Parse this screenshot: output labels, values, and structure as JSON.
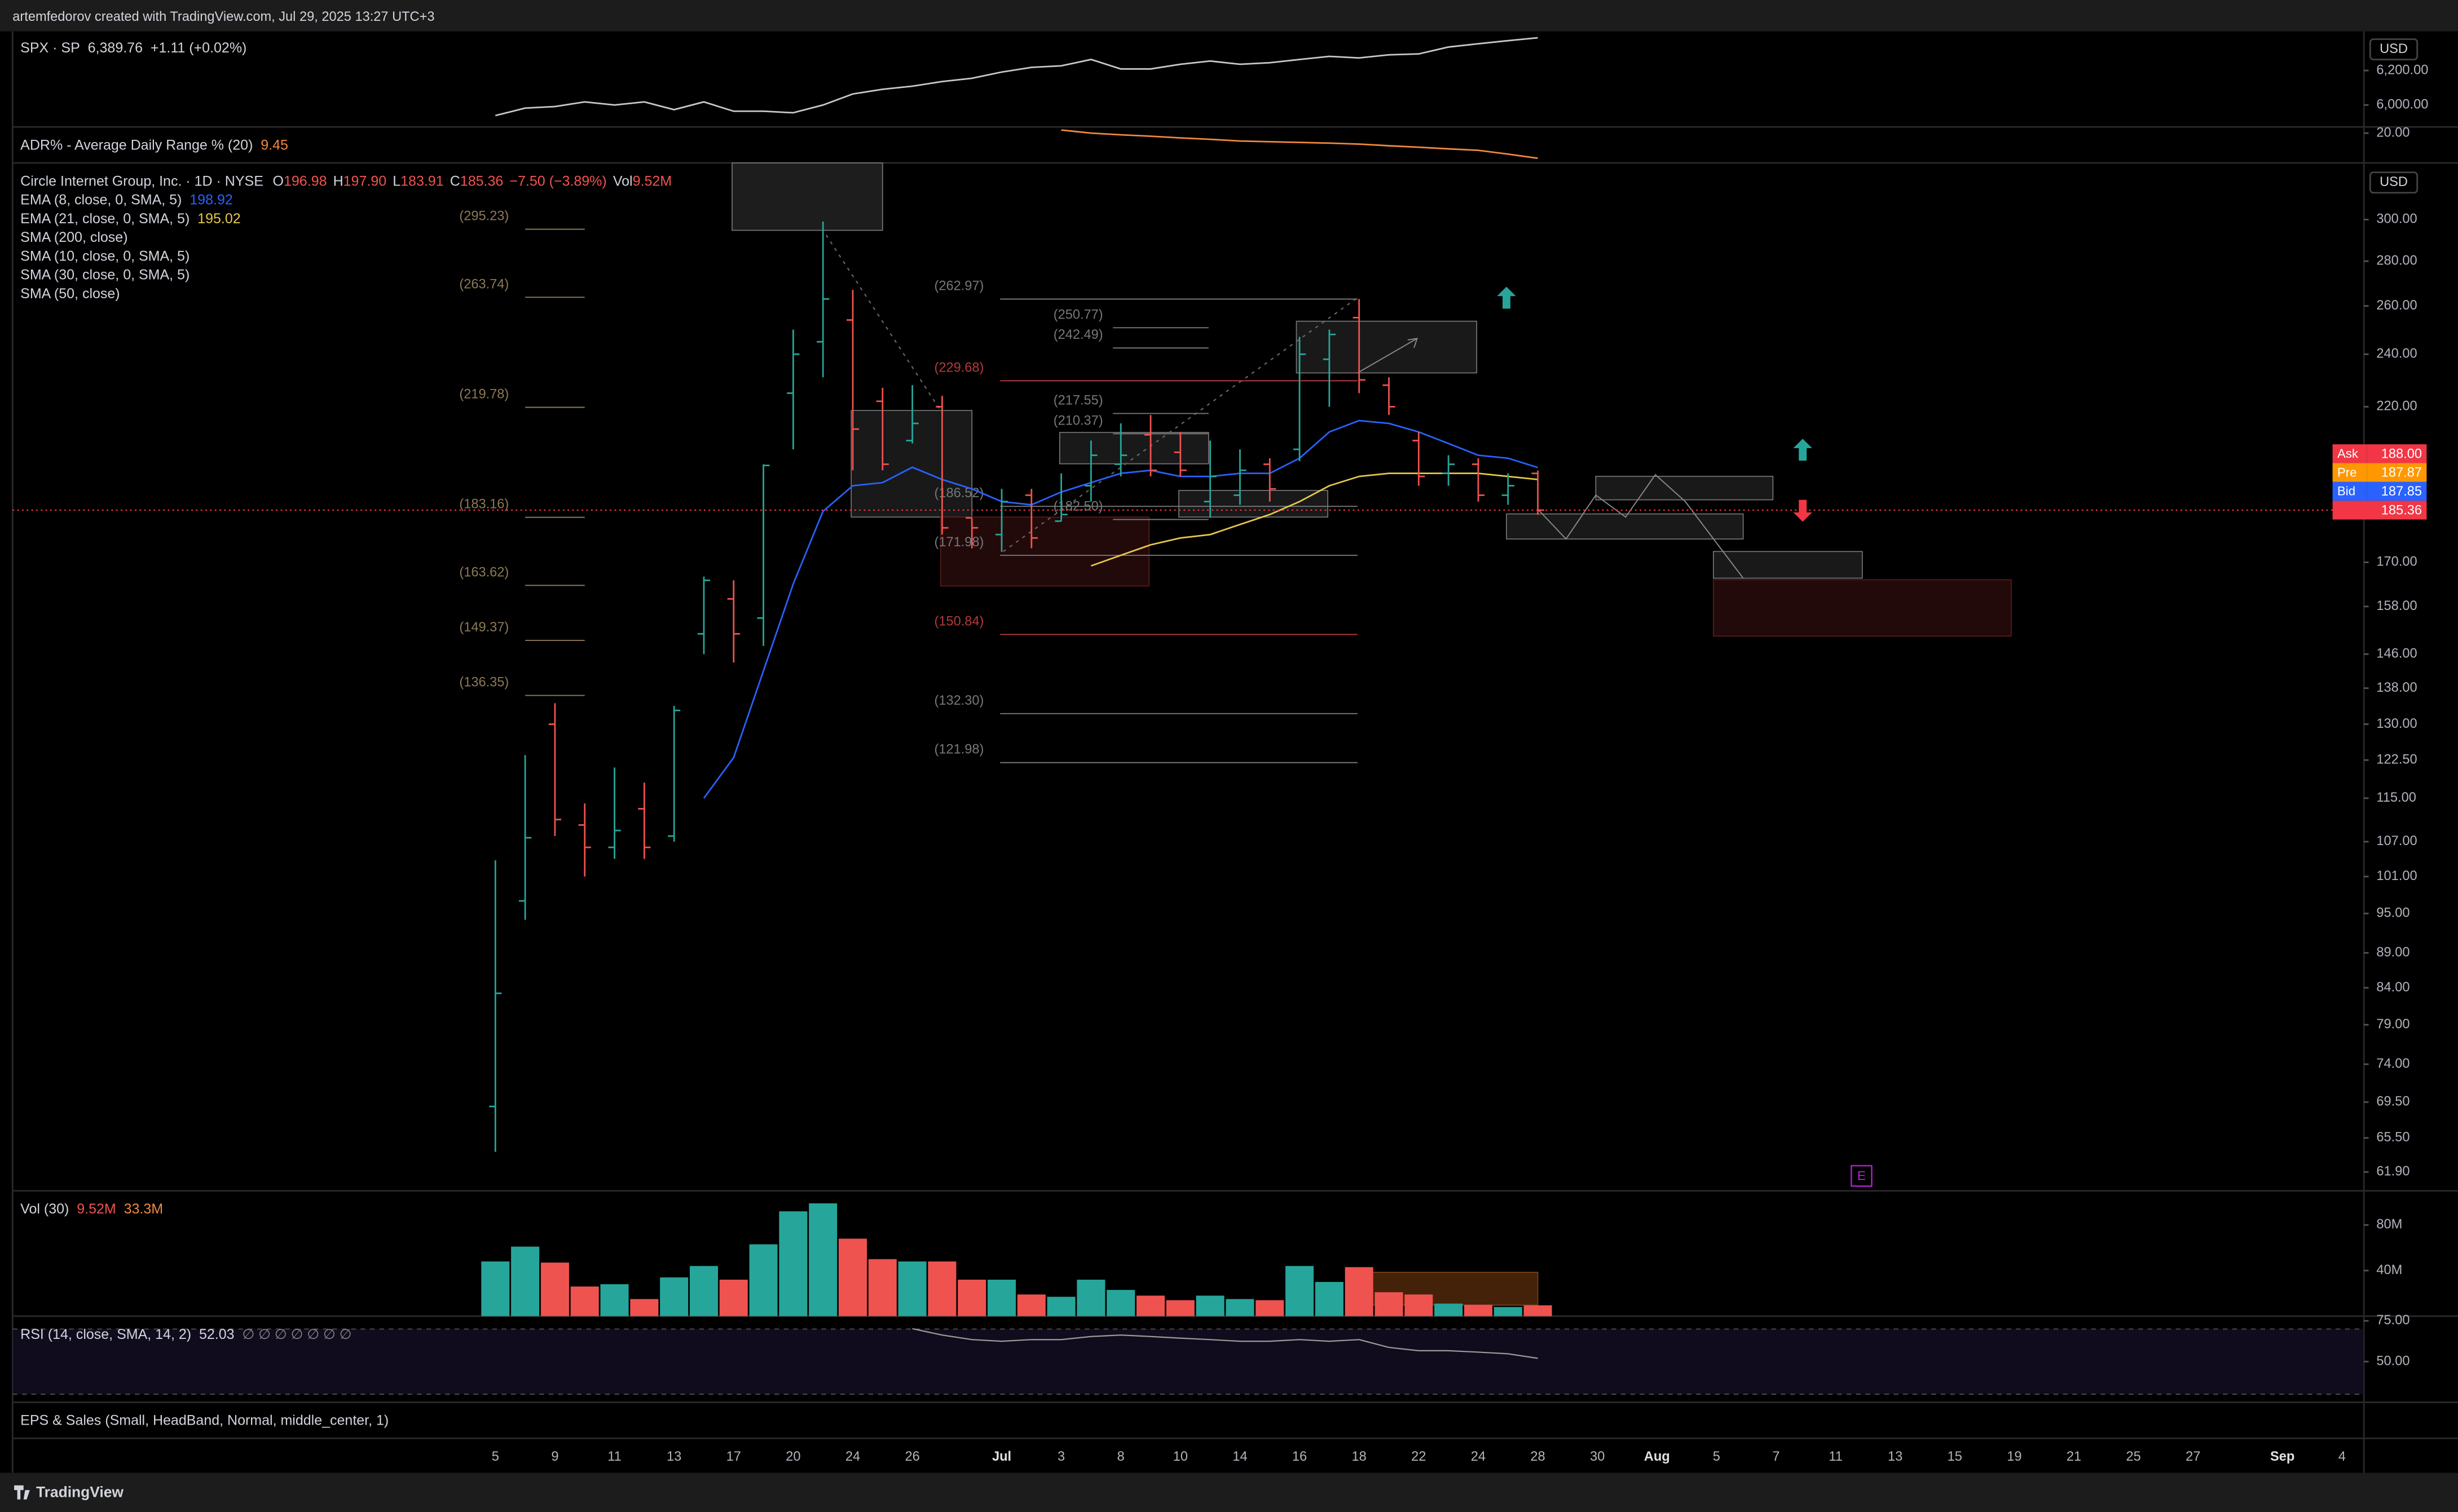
{
  "header": {
    "text": "artemfedorov created with TradingView.com, Jul 29, 2025 13:27 UTC+3"
  },
  "x_axis": {
    "categories": [
      "5",
      null,
      "9",
      null,
      "11",
      null,
      "13",
      null,
      "17",
      null,
      "20",
      null,
      "24",
      null,
      "26",
      null,
      null,
      "Jul",
      null,
      "3",
      null,
      "8",
      null,
      "10",
      null,
      "14",
      null,
      "16",
      null,
      "18",
      null,
      "22",
      null,
      "24",
      null,
      "28",
      null,
      "30",
      null,
      "Aug",
      null,
      "5",
      null,
      "7",
      null,
      "11",
      null,
      "13",
      null,
      "15",
      null,
      "19",
      null,
      "21",
      null,
      "25",
      null,
      "27",
      null,
      null,
      "Sep",
      null,
      "4"
    ]
  },
  "spx": {
    "legend": {
      "symbol": "SPX · SP",
      "price": "6,389.76",
      "change": "+1.11 (+0.02%)"
    },
    "currency": "USD",
    "color": "#c8c8c8",
    "values": [
      5939,
      5982,
      5991,
      6018,
      6000,
      6018,
      5973,
      6018,
      5964,
      5964,
      5955,
      6000,
      6064,
      6091,
      6109,
      6136,
      6155,
      6191,
      6218,
      6227,
      6264,
      6209,
      6209,
      6236,
      6255,
      6236,
      6245,
      6264,
      6282,
      6273,
      6291,
      6296,
      6336,
      6355,
      6373,
      6389.76
    ],
    "ylim": [
      5873,
      6427
    ],
    "yticks": [
      {
        "value": 6200,
        "label": "6,200.00"
      },
      {
        "value": 6000,
        "label": "6,000.00"
      }
    ]
  },
  "adr": {
    "legend": {
      "name": "ADR% - Average Daily Range % (20)",
      "value": "9.45"
    },
    "color": "#f0883e",
    "values": [
      null,
      null,
      null,
      null,
      null,
      null,
      null,
      null,
      null,
      null,
      null,
      null,
      null,
      null,
      null,
      null,
      null,
      null,
      null,
      21.3,
      20,
      19.3,
      18.7,
      18,
      17.4,
      16.7,
      16.4,
      16.1,
      15.8,
      15.4,
      14.7,
      14.1,
      13.4,
      12.8,
      11.2,
      9.45
    ],
    "ylim": [
      7.5,
      22.6
    ],
    "yticks": [
      {
        "value": 20,
        "label": "20.00"
      }
    ]
  },
  "main": {
    "legend": {
      "title": "Circle Internet Group, Inc. · 1D · NYSE",
      "ohlc": [
        {
          "key": "O",
          "value": "196.98"
        },
        {
          "key": "H",
          "value": "197.90"
        },
        {
          "key": "L",
          "value": "183.91"
        },
        {
          "key": "C",
          "value": "185.36"
        }
      ],
      "change": "−7.50 (−3.89%)",
      "vol_key": "Vol",
      "vol": "9.52M"
    },
    "currency": "USD",
    "log": true,
    "ylim": [
      60,
      329.5
    ],
    "yticks": [
      {
        "value": 300,
        "label": "300.00"
      },
      {
        "value": 280,
        "label": "280.00"
      },
      {
        "value": 260,
        "label": "260.00"
      },
      {
        "value": 240,
        "label": "240.00"
      },
      {
        "value": 220,
        "label": "220.00"
      },
      {
        "value": 170,
        "label": "170.00"
      },
      {
        "value": 158,
        "label": "158.00"
      },
      {
        "value": 146,
        "label": "146.00"
      },
      {
        "value": 138,
        "label": "138.00"
      },
      {
        "value": 130,
        "label": "130.00"
      },
      {
        "value": 122.5,
        "label": "122.50"
      },
      {
        "value": 115,
        "label": "115.00"
      },
      {
        "value": 107,
        "label": "107.00"
      },
      {
        "value": 101,
        "label": "101.00"
      },
      {
        "value": 95,
        "label": "95.00"
      },
      {
        "value": 89,
        "label": "89.00"
      },
      {
        "value": 84,
        "label": "84.00"
      },
      {
        "value": 79,
        "label": "79.00"
      },
      {
        "value": 74,
        "label": "74.00"
      },
      {
        "value": 69.5,
        "label": "69.50"
      },
      {
        "value": 65.5,
        "label": "65.50"
      },
      {
        "value": 61.9,
        "label": "61.90"
      }
    ],
    "up_color": "#26a69a",
    "down_color": "#ef5350",
    "ohlc": {
      "open": [
        69,
        97,
        130,
        110,
        106,
        113,
        108,
        151,
        160,
        155,
        225,
        245,
        254,
        222,
        208,
        220,
        183,
        178,
        190,
        182,
        193,
        200,
        210,
        204,
        188,
        190,
        200,
        205,
        238,
        255,
        228,
        208,
        197,
        200,
        190,
        196.98
      ],
      "high": [
        103.75,
        123.5,
        134.6,
        114,
        121,
        118,
        134,
        166,
        165,
        200,
        250,
        299,
        267,
        227,
        228,
        224,
        183,
        192,
        192,
        197,
        208,
        214,
        217,
        211,
        208,
        205,
        202,
        247,
        250,
        263,
        231,
        211,
        203,
        202,
        197,
        197.9
      ],
      "low": [
        64,
        94,
        108,
        101,
        104,
        104,
        107,
        146,
        144,
        148,
        205,
        231,
        198,
        198,
        207,
        178,
        174,
        173,
        174,
        182,
        188,
        196,
        196,
        196,
        183,
        187,
        188,
        201,
        220,
        225,
        217,
        193,
        193,
        188,
        187,
        183.91
      ],
      "close": [
        83.23,
        107.7,
        111,
        106,
        109,
        106,
        133,
        165,
        151,
        199.6,
        240,
        263,
        212,
        200,
        214,
        180,
        180,
        188,
        177,
        184,
        203,
        203,
        198,
        198,
        196,
        198,
        192,
        240,
        248,
        230,
        220,
        196,
        200,
        190,
        193,
        185.36
      ]
    },
    "series": [
      {
        "name": "EMA (8, close, 0, SMA, 5)",
        "value_label": "198.92",
        "color": "#2962ff",
        "values": [
          null,
          null,
          null,
          null,
          null,
          null,
          null,
          115,
          123,
          142,
          164,
          185,
          193,
          194,
          199,
          195,
          192,
          188,
          187,
          191,
          194,
          197,
          198,
          196,
          196,
          197,
          197,
          202,
          211,
          215,
          214,
          211,
          207,
          203,
          202,
          198.92
        ]
      },
      {
        "name": "EMA (21, close, 0, SMA, 5)",
        "value_label": "195.02",
        "color": "#e6c84a",
        "values": [
          null,
          null,
          null,
          null,
          null,
          null,
          null,
          null,
          null,
          null,
          null,
          null,
          null,
          null,
          null,
          null,
          null,
          null,
          null,
          null,
          169,
          172,
          175,
          177,
          178,
          181,
          184,
          188,
          193,
          196,
          197,
          197,
          197,
          197,
          196,
          195.02
        ]
      }
    ],
    "indicators": [
      "SMA (200, close)",
      "SMA (10, close, 0, SMA, 5)",
      "SMA (30, close, 0, SMA, 5)",
      "SMA (50, close)"
    ],
    "levels_a": {
      "color": "#8c7a55",
      "levels": [
        {
          "value": 295.23,
          "label": "(295.23)"
        },
        {
          "value": 263.74,
          "label": "(263.74)"
        },
        {
          "value": 219.78,
          "label": "(219.78)"
        },
        {
          "value": 183.16,
          "label": "(183.16)"
        },
        {
          "value": 163.62,
          "label": "(163.62)"
        },
        {
          "value": 149.37,
          "label": "(149.37)"
        },
        {
          "value": 136.35,
          "label": "(136.35)"
        }
      ]
    },
    "levels_b": {
      "color": "#777777",
      "levels": [
        {
          "value": 262.97,
          "label": "(262.97)"
        },
        {
          "value": 229.68,
          "label": "(229.68)",
          "color": "#b33a3a"
        },
        {
          "value": 186.52,
          "label": "(186.52)"
        },
        {
          "value": 171.98,
          "label": "(171.98)"
        },
        {
          "value": 150.84,
          "label": "(150.84)",
          "color": "#b33a3a"
        },
        {
          "value": 132.3,
          "label": "(132.30)"
        },
        {
          "value": 121.98,
          "label": "(121.98)"
        }
      ]
    },
    "levels_c": {
      "color": "#777777",
      "levels": [
        {
          "value": 250.77,
          "label": "(250.77)"
        },
        {
          "value": 242.49,
          "label": "(242.49)"
        },
        {
          "value": 217.55,
          "label": "(217.55)"
        },
        {
          "value": 210.37,
          "label": "(210.37)"
        },
        {
          "value": 182.5,
          "label": "(182.50)"
        }
      ]
    },
    "price_tags": [
      {
        "name": "Ask",
        "value": "188.00",
        "color": "#f23645"
      },
      {
        "name": "Pre",
        "value": "187.87",
        "color": "#ff9800"
      },
      {
        "name": "Bid",
        "value": "187.85",
        "color": "#2962ff"
      }
    ],
    "last_price": {
      "value": 185.36,
      "label": "185.36",
      "color": "#f23645"
    },
    "earnings_marker": "E"
  },
  "volume": {
    "legend": {
      "name": "Vol (30)",
      "value": "9.52M",
      "average": "33.3M"
    },
    "values": [
      48,
      61,
      47,
      26,
      28,
      15,
      34,
      44,
      32,
      63,
      92,
      99,
      68,
      50,
      48,
      48,
      32,
      32,
      19,
      17,
      32,
      23,
      18,
      14,
      18,
      15,
      14,
      44,
      30,
      43,
      21,
      19,
      11,
      10,
      8,
      9.52
    ],
    "ylim": [
      0,
      110
    ],
    "yticks": [
      {
        "value": 80,
        "label": "80M"
      },
      {
        "value": 40,
        "label": "40M"
      }
    ]
  },
  "rsi": {
    "legend": {
      "name": "RSI (14, close, SMA, 14, 2)",
      "value": "52.03",
      "extra": "∅ ∅ ∅ ∅ ∅ ∅ ∅"
    },
    "color": "#9a9a9a",
    "values": [
      null,
      null,
      null,
      null,
      null,
      null,
      null,
      null,
      null,
      null,
      null,
      null,
      null,
      null,
      70.2,
      66.3,
      63.5,
      62.5,
      63.5,
      63.5,
      65.4,
      66.3,
      65.4,
      64.4,
      63.5,
      62.5,
      62.5,
      63.5,
      62.5,
      63.5,
      58.7,
      56.7,
      56.7,
      55.8,
      54.8,
      52.03
    ],
    "ylim": [
      25,
      77.9
    ],
    "yticks": [
      {
        "value": 75,
        "label": "75.00"
      },
      {
        "value": 50,
        "label": "50.00"
      }
    ],
    "band": [
      30,
      70
    ]
  },
  "eps": {
    "legend": "EPS & Sales (Small, HeadBand, Normal, middle_center, 1)"
  },
  "footer": {
    "brand": "TradingView"
  }
}
